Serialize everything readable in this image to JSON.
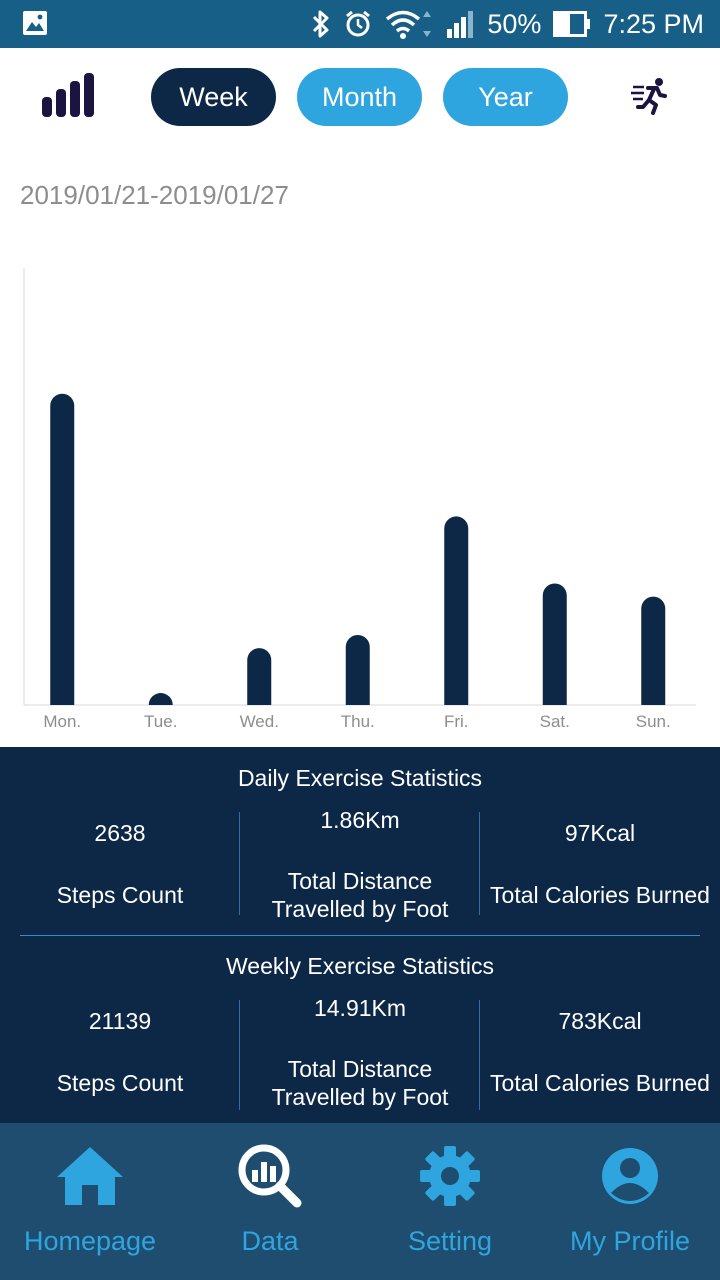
{
  "status_bar": {
    "battery": "50%",
    "time": "7:25 PM"
  },
  "tabs": [
    {
      "label": "Week",
      "active": true
    },
    {
      "label": "Month",
      "active": false
    },
    {
      "label": "Year",
      "active": false
    }
  ],
  "date_range": "2019/01/21-2019/01/27",
  "chart_data": {
    "type": "bar",
    "categories": [
      "Mon.",
      "Tue.",
      "Wed.",
      "Thu.",
      "Fri.",
      "Sat.",
      "Sun."
    ],
    "values": [
      5200,
      200,
      950,
      1170,
      3150,
      2030,
      1810
    ],
    "ylim": [
      0,
      7300
    ],
    "grid": false,
    "bar_color": "#0d2847"
  },
  "daily": {
    "title": "Daily Exercise Statistics",
    "steps_value": "2638",
    "steps_label": "Steps Count",
    "distance_value": "1.86Km",
    "distance_label_1": "Total Distance",
    "distance_label_2": "Travelled by Foot",
    "calories_value": "97Kcal",
    "calories_label": "Total Calories Burned"
  },
  "weekly": {
    "title": "Weekly Exercise Statistics",
    "steps_value": "21139",
    "steps_label": "Steps Count",
    "distance_value": "14.91Km",
    "distance_label_1": "Total Distance",
    "distance_label_2": "Travelled by Foot",
    "calories_value": "783Kcal",
    "calories_label": "Total Calories Burned"
  },
  "nav": {
    "items": [
      {
        "label": "Homepage",
        "icon": "home-icon"
      },
      {
        "label": "Data",
        "icon": "data-search-icon"
      },
      {
        "label": "Setting",
        "icon": "gear-icon"
      },
      {
        "label": "My Profile",
        "icon": "profile-icon"
      }
    ]
  },
  "colors": {
    "status_bar": "#175f86",
    "dark_navy": "#0d2847",
    "accent_blue": "#2fa5df",
    "nav_bg": "#1e4d70"
  }
}
